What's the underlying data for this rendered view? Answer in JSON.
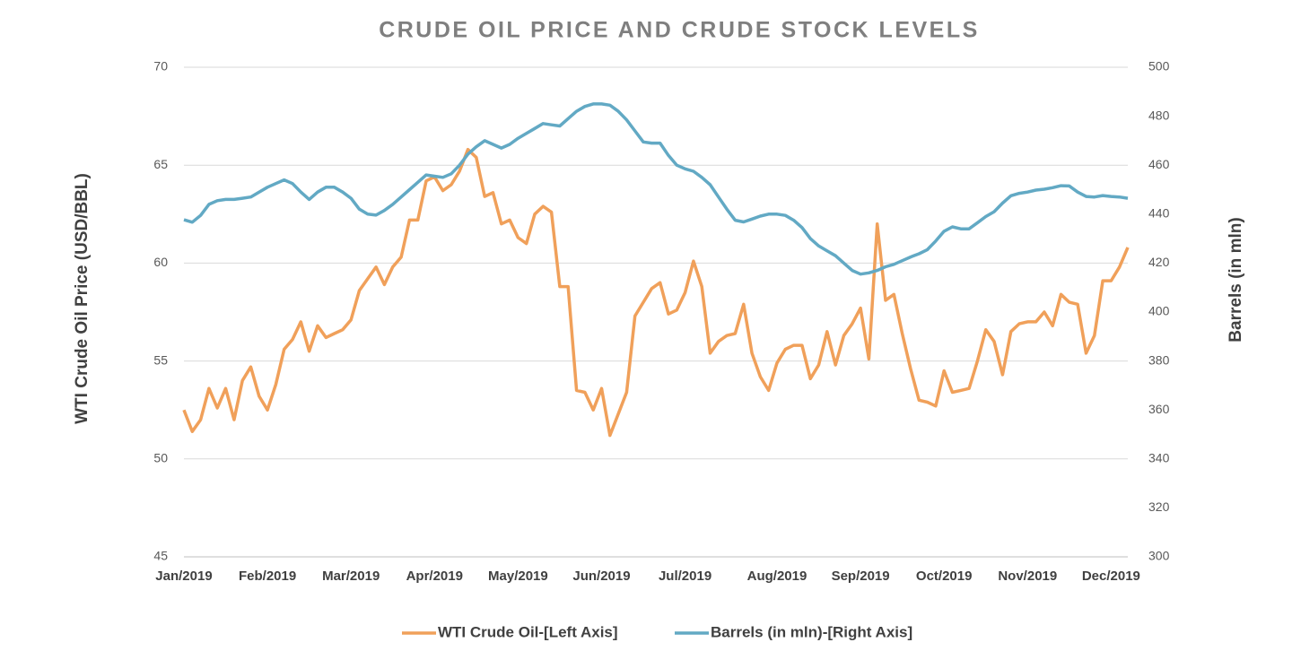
{
  "chart_data": {
    "type": "line",
    "title": "CRUDE OIL PRICE AND CRUDE STOCK LEVELS",
    "y_label": "WTI Crude Oil Price (USD/BBL)",
    "y2_label": "Barrels (in mln)",
    "categories": [
      "Jan/2019",
      null,
      null,
      null,
      null,
      null,
      null,
      null,
      null,
      null,
      "Feb/2019",
      null,
      null,
      null,
      null,
      null,
      null,
      null,
      null,
      null,
      "Mar/2019",
      null,
      null,
      null,
      null,
      null,
      null,
      null,
      null,
      null,
      "Apr/2019",
      null,
      null,
      null,
      null,
      null,
      null,
      null,
      null,
      null,
      "May/2019",
      null,
      null,
      null,
      null,
      null,
      null,
      null,
      null,
      null,
      "Jun/2019",
      null,
      null,
      null,
      null,
      null,
      null,
      null,
      null,
      null,
      "Jul/2019",
      null,
      null,
      null,
      null,
      null,
      null,
      null,
      null,
      null,
      null,
      "Aug/2019",
      null,
      null,
      null,
      null,
      null,
      null,
      null,
      null,
      null,
      "Sep/2019",
      null,
      null,
      null,
      null,
      null,
      null,
      null,
      null,
      null,
      "Oct/2019",
      null,
      null,
      null,
      null,
      null,
      null,
      null,
      null,
      null,
      "Nov/2019",
      null,
      null,
      null,
      null,
      null,
      null,
      null,
      null,
      null,
      "Dec/2019",
      null,
      null
    ],
    "series": [
      {
        "name": "WTI Crude Oil-[Left Axis]",
        "color": "#f0a05a",
        "axis": "y",
        "values": [
          52.5,
          51.4,
          52.0,
          53.6,
          52.6,
          53.6,
          52.0,
          54.0,
          54.7,
          53.2,
          52.5,
          53.8,
          55.6,
          56.1,
          57.0,
          55.5,
          56.8,
          56.2,
          56.4,
          56.6,
          57.1,
          58.6,
          59.2,
          59.8,
          58.9,
          59.8,
          60.3,
          62.2,
          62.2,
          64.2,
          64.4,
          63.7,
          64.0,
          64.7,
          65.8,
          65.4,
          63.4,
          63.6,
          62.0,
          62.2,
          61.3,
          61.0,
          62.5,
          62.9,
          62.6,
          58.8,
          58.8,
          53.5,
          53.4,
          52.5,
          53.6,
          51.2,
          52.3,
          53.4,
          57.3,
          58.0,
          58.7,
          59.0,
          57.4,
          57.6,
          58.5,
          60.1,
          58.8,
          55.4,
          56.0,
          56.3,
          56.4,
          57.9,
          55.4,
          54.2,
          53.5,
          54.9,
          55.6,
          55.8,
          55.8,
          54.1,
          54.8,
          56.5,
          54.8,
          56.3,
          56.9,
          57.7,
          55.1,
          62.0,
          58.1,
          58.4,
          56.4,
          54.6,
          53.0,
          52.9,
          52.7,
          54.5,
          53.4,
          53.5,
          53.6,
          55.0,
          56.6,
          56.0,
          54.3,
          56.5,
          56.9,
          57.0,
          57.0,
          57.5,
          56.8,
          58.4,
          58.0,
          57.9,
          55.4,
          56.3,
          59.1,
          59.1,
          59.8,
          60.8
        ]
      },
      {
        "name": "Barrels (in mln)-[Right Axis]",
        "color": "#62a9c4",
        "axis": "y2",
        "values": [
          437.7,
          436.7,
          439.5,
          444,
          445.5,
          446,
          446,
          446.5,
          447,
          449,
          451,
          452.5,
          454,
          452.5,
          449,
          446,
          449,
          451,
          451,
          449,
          446.5,
          442,
          440,
          439.6,
          441.5,
          444,
          447,
          450,
          453,
          456,
          455.5,
          455,
          456.5,
          460,
          464.5,
          467.5,
          470,
          468.5,
          467,
          468.5,
          471,
          473,
          475,
          477,
          476.5,
          476,
          479,
          482,
          484,
          485,
          485,
          484.5,
          482,
          478.5,
          474,
          469.5,
          469,
          469,
          464,
          460,
          458.5,
          457.5,
          455,
          452,
          447,
          442,
          437.5,
          436.8,
          438,
          439.2,
          440,
          440,
          439.5,
          437.5,
          434.5,
          430,
          427,
          425,
          423,
          420,
          417,
          415.5,
          416,
          417,
          418.5,
          419.5,
          421,
          422.5,
          423.8,
          425.5,
          429,
          433,
          434.8,
          434,
          434,
          436.5,
          439,
          441,
          444.5,
          447.5,
          448.5,
          449,
          449.8,
          450.2,
          450.8,
          451.6,
          451.5,
          449,
          447.2,
          447,
          447.6,
          447.2,
          447,
          446.5
        ]
      }
    ],
    "ylim": [
      45,
      70
    ],
    "yticks": [
      45,
      50,
      55,
      60,
      65,
      70
    ],
    "y2lim": [
      300,
      500
    ],
    "y2ticks": [
      300,
      320,
      340,
      360,
      380,
      400,
      420,
      440,
      460,
      480,
      500
    ],
    "grid": true,
    "legend": "bottom"
  }
}
